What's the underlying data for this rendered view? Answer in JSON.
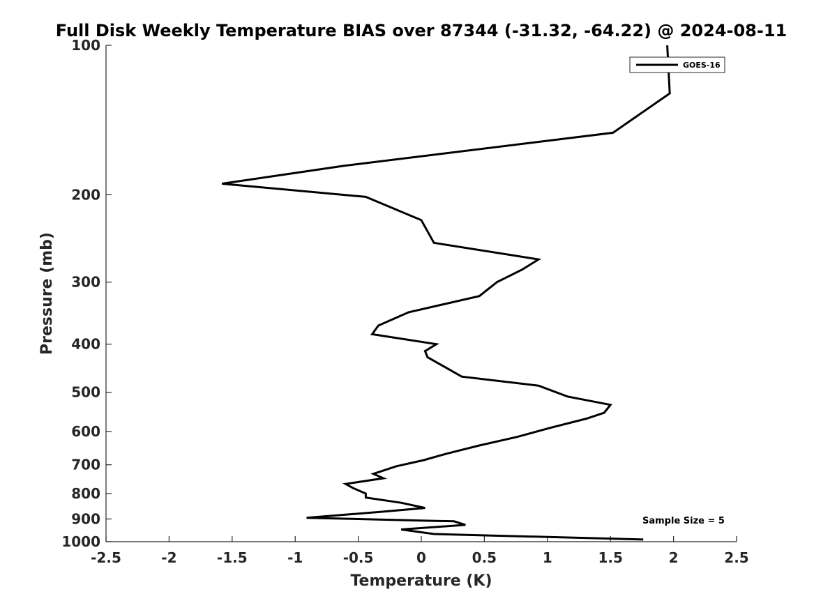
{
  "chart_data": {
    "type": "line",
    "title": "Full Disk Weekly Temperature BIAS over 87344 (-31.32, -64.22) @ 2024-08-11",
    "xlabel": "Temperature (K)",
    "ylabel": "Pressure (mb)",
    "xlim": [
      -2.5,
      2.5
    ],
    "ylim": [
      1000,
      100
    ],
    "y_scale": "log",
    "y_reversed": true,
    "x_ticks": [
      -2.5,
      -2,
      -1.5,
      -1,
      -0.5,
      0,
      0.5,
      1,
      1.5,
      2,
      2.5
    ],
    "x_tick_labels": [
      "-2.5",
      "-2",
      "-1.5",
      "-1",
      "-0.5",
      "0",
      "0.5",
      "1",
      "1.5",
      "2",
      "2.5"
    ],
    "y_ticks": [
      100,
      200,
      300,
      400,
      500,
      600,
      700,
      800,
      900,
      1000
    ],
    "y_tick_labels": [
      "100",
      "200",
      "300",
      "400",
      "500",
      "600",
      "700",
      "800",
      "900",
      "1000"
    ],
    "grid": false,
    "legend_position": "top-right",
    "annotation": "Sample Size = 5",
    "series": [
      {
        "name": "GOES-16",
        "color": "#000000",
        "points": [
          [
            1.95,
            100
          ],
          [
            1.97,
            125
          ],
          [
            1.52,
            150
          ],
          [
            -0.62,
            175
          ],
          [
            -1.58,
            190
          ],
          [
            -0.44,
            202
          ],
          [
            0.0,
            225
          ],
          [
            0.1,
            250
          ],
          [
            0.93,
            270
          ],
          [
            0.8,
            283
          ],
          [
            0.6,
            300
          ],
          [
            0.46,
            320
          ],
          [
            -0.1,
            345
          ],
          [
            -0.34,
            367
          ],
          [
            -0.39,
            382
          ],
          [
            0.12,
            400
          ],
          [
            0.03,
            413
          ],
          [
            0.05,
            425
          ],
          [
            0.32,
            465
          ],
          [
            0.93,
            485
          ],
          [
            1.16,
            510
          ],
          [
            1.5,
            530
          ],
          [
            1.45,
            550
          ],
          [
            1.31,
            565
          ],
          [
            1.02,
            590
          ],
          [
            0.76,
            615
          ],
          [
            0.46,
            640
          ],
          [
            0.2,
            665
          ],
          [
            0.02,
            685
          ],
          [
            -0.2,
            705
          ],
          [
            -0.38,
            730
          ],
          [
            -0.3,
            745
          ],
          [
            -0.6,
            765
          ],
          [
            -0.54,
            780
          ],
          [
            -0.44,
            800
          ],
          [
            -0.44,
            815
          ],
          [
            -0.16,
            835
          ],
          [
            0.03,
            855
          ],
          [
            -0.3,
            870
          ],
          [
            -0.91,
            895
          ],
          [
            0.26,
            910
          ],
          [
            0.35,
            925
          ],
          [
            -0.16,
            945
          ],
          [
            0.1,
            965
          ],
          [
            1.76,
            990
          ]
        ]
      }
    ]
  }
}
